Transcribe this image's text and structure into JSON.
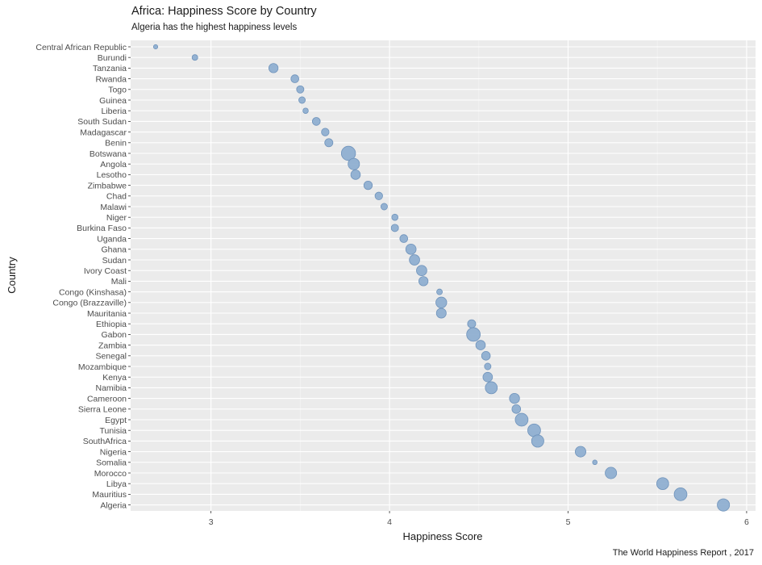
{
  "chart_data": {
    "type": "scatter",
    "title": "Africa: Happiness Score by Country",
    "subtitle": "Algeria has the highest happiness levels",
    "caption": "The World Happiness Report , 2017",
    "xlabel": "Happiness Score",
    "ylabel": "Country",
    "xlim": [
      2.55,
      6.05
    ],
    "xticks": [
      3,
      4,
      5,
      6
    ],
    "grid": true,
    "point_color": "#8fafd1",
    "point_stroke": "#6f93bb",
    "panel_color": "#ebebeb",
    "points": [
      {
        "country": "Central African Republic",
        "score": 2.69,
        "size": 0.4
      },
      {
        "country": "Burundi",
        "score": 2.91,
        "size": 0.9
      },
      {
        "country": "Tanzania",
        "score": 3.35,
        "size": 2.2
      },
      {
        "country": "Rwanda",
        "score": 3.47,
        "size": 1.7
      },
      {
        "country": "Togo",
        "score": 3.5,
        "size": 1.5
      },
      {
        "country": "Guinea",
        "score": 3.51,
        "size": 1.2
      },
      {
        "country": "Liberia",
        "score": 3.53,
        "size": 0.8
      },
      {
        "country": "South Sudan",
        "score": 3.59,
        "size": 1.7
      },
      {
        "country": "Madagascar",
        "score": 3.64,
        "size": 1.6
      },
      {
        "country": "Benin",
        "score": 3.66,
        "size": 1.8
      },
      {
        "country": "Botswana",
        "score": 3.77,
        "size": 4.0
      },
      {
        "country": "Angola",
        "score": 3.8,
        "size": 3.0
      },
      {
        "country": "Lesotho",
        "score": 3.81,
        "size": 2.3
      },
      {
        "country": "Zimbabwe",
        "score": 3.88,
        "size": 1.9
      },
      {
        "country": "Chad",
        "score": 3.94,
        "size": 1.6
      },
      {
        "country": "Malawi",
        "score": 3.97,
        "size": 1.2
      },
      {
        "country": "Niger",
        "score": 4.03,
        "size": 1.1
      },
      {
        "country": "Burkina Faso",
        "score": 4.03,
        "size": 1.5
      },
      {
        "country": "Uganda",
        "score": 4.08,
        "size": 1.7
      },
      {
        "country": "Ghana",
        "score": 4.12,
        "size": 2.6
      },
      {
        "country": "Sudan",
        "score": 4.14,
        "size": 2.6
      },
      {
        "country": "Ivory Coast",
        "score": 4.18,
        "size": 2.6
      },
      {
        "country": "Mali",
        "score": 4.19,
        "size": 2.2
      },
      {
        "country": "Congo (Kinshasa)",
        "score": 4.28,
        "size": 0.9
      },
      {
        "country": "Congo (Brazzaville)",
        "score": 4.29,
        "size": 2.8
      },
      {
        "country": "Mauritania",
        "score": 4.29,
        "size": 2.4
      },
      {
        "country": "Ethiopia",
        "score": 4.46,
        "size": 1.8
      },
      {
        "country": "Gabon",
        "score": 4.47,
        "size": 3.8
      },
      {
        "country": "Zambia",
        "score": 4.51,
        "size": 2.3
      },
      {
        "country": "Senegal",
        "score": 4.54,
        "size": 2.0
      },
      {
        "country": "Mozambique",
        "score": 4.55,
        "size": 1.2
      },
      {
        "country": "Kenya",
        "score": 4.55,
        "size": 2.3
      },
      {
        "country": "Namibia",
        "score": 4.57,
        "size": 3.2
      },
      {
        "country": "Cameroon",
        "score": 4.7,
        "size": 2.5
      },
      {
        "country": "Sierra Leone",
        "score": 4.71,
        "size": 2.0
      },
      {
        "country": "Egypt",
        "score": 4.74,
        "size": 3.5
      },
      {
        "country": "Tunisia",
        "score": 4.81,
        "size": 3.5
      },
      {
        "country": "SouthAfrica",
        "score": 4.83,
        "size": 3.3
      },
      {
        "country": "Nigeria",
        "score": 5.07,
        "size": 2.7
      },
      {
        "country": "Somalia",
        "score": 5.15,
        "size": 0.5
      },
      {
        "country": "Morocco",
        "score": 5.24,
        "size": 3.0
      },
      {
        "country": "Libya",
        "score": 5.53,
        "size": 3.2
      },
      {
        "country": "Mauritius",
        "score": 5.63,
        "size": 3.5
      },
      {
        "country": "Algeria",
        "score": 5.87,
        "size": 3.3
      }
    ]
  }
}
